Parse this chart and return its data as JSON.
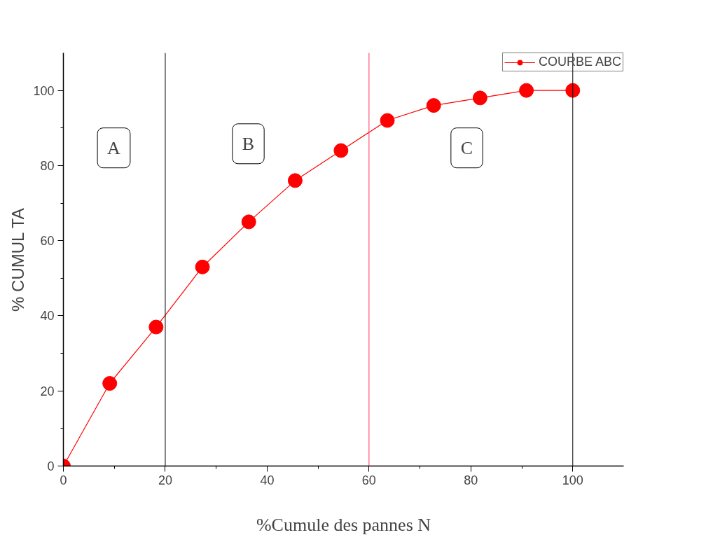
{
  "chart_data": {
    "type": "line",
    "xlabel": "%Cumule des pannes N",
    "ylabel": "% CUMUL TA",
    "x": [
      0,
      9.1,
      18.2,
      27.3,
      36.4,
      45.5,
      54.5,
      63.6,
      72.7,
      81.8,
      90.9,
      100
    ],
    "series": [
      {
        "name": "COURBE ABC",
        "color": "#ff0000",
        "values": [
          0,
          22,
          37,
          53,
          65,
          76,
          84,
          92,
          96,
          98,
          100,
          100
        ]
      }
    ],
    "xlim": [
      0,
      110
    ],
    "ylim": [
      0,
      110
    ],
    "xticks": [
      0,
      20,
      40,
      60,
      80,
      100
    ],
    "yticks": [
      0,
      20,
      40,
      60,
      80,
      100
    ],
    "ref_lines": [
      {
        "axis": "x",
        "value": 20,
        "color": "#000000"
      },
      {
        "axis": "x",
        "value": 60,
        "color": "#ff3366"
      },
      {
        "axis": "x",
        "value": 100,
        "color": "#000000"
      }
    ],
    "annotations": [
      "A",
      "B",
      "C"
    ],
    "marker": "circle",
    "line_style": "solid",
    "grid": false,
    "legend": "top right"
  }
}
